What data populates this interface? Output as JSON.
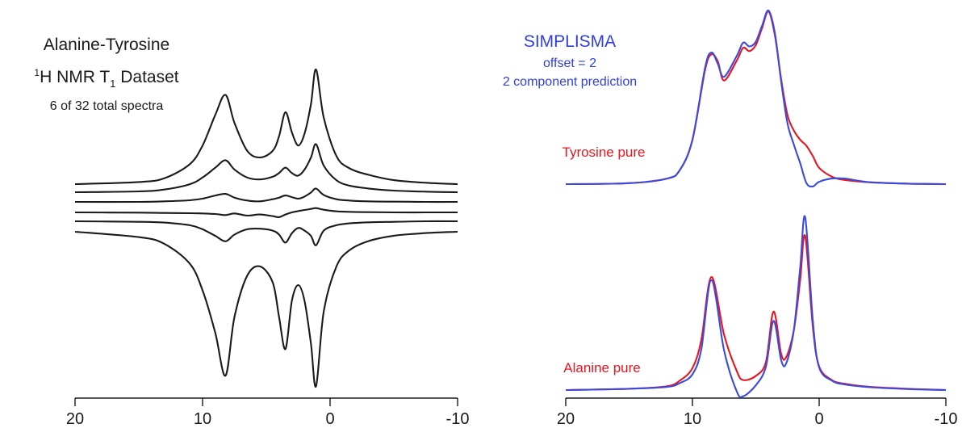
{
  "chart_data": [
    {
      "type": "line",
      "title": "Alanine-Tyrosine",
      "subtitle": {
        "prefix_sup": "1",
        "main": "H NMR T",
        "sub": "1",
        "suffix": " Dataset"
      },
      "note": "6 of 32 total spectra",
      "xlabel": "",
      "ylabel": "",
      "x_ticks": [
        "20",
        "10",
        "0",
        "-10"
      ],
      "xlim": [
        20,
        -10
      ],
      "axis_reversed": true,
      "grid": false,
      "color": "#1a1a1a",
      "peaks_ppm": [
        8.2,
        3.5,
        1.1
      ],
      "x": [
        20,
        15,
        13,
        11,
        10,
        9,
        8.2,
        7.5,
        6.5,
        5.5,
        4.5,
        4,
        3.5,
        3,
        2.5,
        2,
        1.5,
        1.1,
        0.5,
        -0.5,
        -1.5,
        -3,
        -5,
        -7.5,
        -10
      ],
      "series": [
        {
          "values": [
            0.0,
            0.08,
            0.22,
            0.75,
            1.45,
            2.6,
            3.35,
            2.3,
            1.25,
            1.0,
            1.25,
            1.8,
            2.7,
            1.95,
            1.45,
            1.9,
            3.0,
            4.3,
            2.5,
            1.05,
            0.6,
            0.35,
            0.15,
            0.05,
            0.0
          ]
        },
        {
          "values": [
            0.0,
            0.03,
            0.1,
            0.3,
            0.55,
            0.92,
            1.2,
            0.85,
            0.55,
            0.48,
            0.58,
            0.72,
            0.92,
            0.72,
            0.62,
            0.85,
            1.3,
            1.8,
            1.0,
            0.45,
            0.25,
            0.14,
            0.06,
            0.02,
            0.0
          ]
        },
        {
          "values": [
            0.0,
            0.0,
            0.02,
            0.06,
            0.12,
            0.24,
            0.3,
            0.16,
            0.05,
            0.02,
            0.1,
            0.16,
            0.24,
            0.18,
            0.12,
            0.2,
            0.35,
            0.5,
            0.26,
            0.1,
            0.05,
            0.02,
            0.01,
            0.0,
            0.0
          ]
        },
        {
          "values": [
            0.0,
            -0.01,
            -0.02,
            -0.03,
            -0.04,
            -0.06,
            -0.1,
            -0.04,
            -0.12,
            -0.08,
            -0.14,
            -0.18,
            -0.08,
            0.0,
            0.05,
            0.09,
            0.13,
            0.16,
            0.1,
            0.04,
            0.02,
            0.01,
            0.0,
            0.0,
            0.0
          ]
        },
        {
          "values": [
            0.0,
            -0.02,
            -0.05,
            -0.15,
            -0.3,
            -0.55,
            -0.75,
            -0.5,
            -0.3,
            -0.28,
            -0.35,
            -0.5,
            -0.8,
            -0.45,
            -0.25,
            -0.35,
            -0.55,
            -0.9,
            -0.35,
            -0.15,
            -0.08,
            -0.04,
            -0.02,
            0.0,
            0.0
          ]
        },
        {
          "values": [
            0.0,
            -0.2,
            -0.45,
            -1.2,
            -2.2,
            -3.8,
            -5.4,
            -3.2,
            -1.65,
            -1.3,
            -1.9,
            -3.2,
            -4.4,
            -2.6,
            -2.0,
            -2.6,
            -4.2,
            -5.8,
            -3.0,
            -1.3,
            -0.7,
            -0.35,
            -0.15,
            -0.05,
            0.0
          ]
        }
      ]
    },
    {
      "type": "line",
      "title": "SIMPLISMA",
      "subtitle_lines": [
        "offset = 2",
        "2 component prediction"
      ],
      "title_color": "#2f3fe0",
      "xlabel": "",
      "ylabel": "",
      "x_ticks": [
        "20",
        "10",
        "0",
        "-10"
      ],
      "xlim": [
        20,
        -10
      ],
      "axis_reversed": true,
      "grid": false,
      "colors": {
        "red": "#e8141e",
        "blue": "#3a4ae0"
      },
      "panels": [
        {
          "label": "Tyrosine pure",
          "label_color": "#e8141e",
          "x": [
            20,
            15,
            12,
            11,
            10,
            9,
            8.5,
            8,
            7.5,
            6.5,
            6,
            5.5,
            5,
            4.5,
            4,
            3.5,
            3,
            2.5,
            2,
            1.5,
            1,
            0.5,
            0,
            -1,
            -2,
            -4,
            -7,
            -10
          ],
          "series": [
            {
              "name": "red",
              "values": [
                0.0,
                0.02,
                0.12,
                0.3,
                0.95,
                2.45,
                2.78,
                2.63,
                2.22,
                2.65,
                2.92,
                2.85,
                2.98,
                3.35,
                3.7,
                3.2,
                2.25,
                1.48,
                1.15,
                0.95,
                0.82,
                0.6,
                0.35,
                0.16,
                0.09,
                0.04,
                0.01,
                0.0
              ]
            },
            {
              "name": "blue",
              "values": [
                0.0,
                0.02,
                0.12,
                0.3,
                0.95,
                2.5,
                2.82,
                2.58,
                2.3,
                2.75,
                3.03,
                2.95,
                3.05,
                3.4,
                3.72,
                3.25,
                2.2,
                1.3,
                0.85,
                0.45,
                0.02,
                -0.05,
                0.05,
                0.12,
                0.12,
                0.04,
                0.01,
                0.0
              ]
            }
          ]
        },
        {
          "label": "Alanine pure",
          "label_color": "#e8141e",
          "x": [
            20,
            15,
            12,
            11,
            10,
            9.3,
            8.5,
            7.5,
            6.5,
            6,
            5,
            4.2,
            3.6,
            3,
            2.6,
            2,
            1.5,
            1.1,
            0.5,
            0,
            -1,
            -2,
            -4,
            -7,
            -10
          ],
          "series": [
            {
              "name": "red",
              "values": [
                0.0,
                0.04,
                0.12,
                0.3,
                0.7,
                1.6,
                3.6,
                1.75,
                0.6,
                0.32,
                0.45,
                0.9,
                2.5,
                1.15,
                1.05,
                1.9,
                3.5,
                4.9,
                2.0,
                0.75,
                0.32,
                0.2,
                0.1,
                0.04,
                0.0
              ]
            },
            {
              "name": "blue",
              "values": [
                0.0,
                0.04,
                0.1,
                0.22,
                0.5,
                1.3,
                3.5,
                1.25,
                -0.05,
                -0.2,
                0.15,
                0.75,
                2.2,
                0.95,
                0.85,
                1.9,
                3.9,
                5.5,
                2.2,
                0.72,
                0.3,
                0.18,
                0.09,
                0.03,
                0.0
              ]
            }
          ]
        }
      ]
    }
  ]
}
